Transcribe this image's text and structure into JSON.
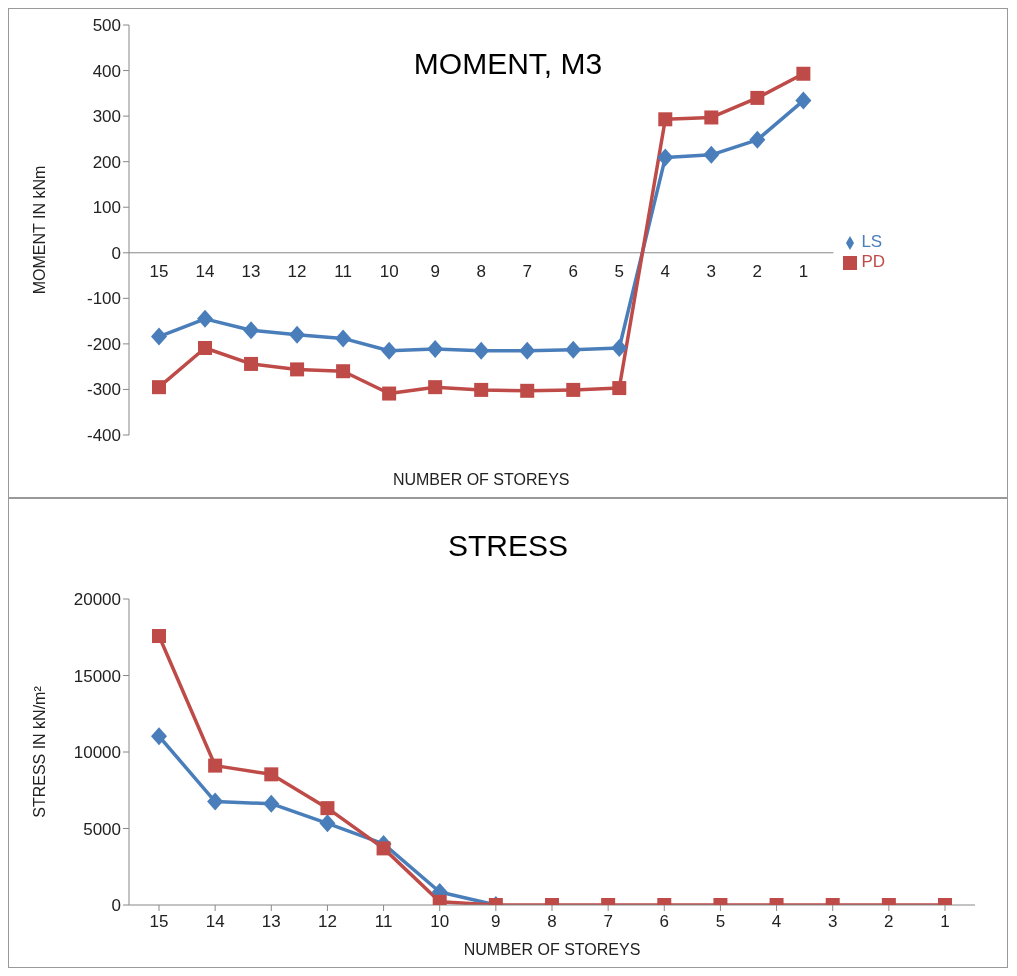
{
  "chart_data": [
    {
      "type": "line",
      "title": "MOMENT, M3",
      "xlabel": "NUMBER OF STOREYS",
      "ylabel": "MOMENT IN kNm",
      "categories": [
        "15",
        "14",
        "13",
        "12",
        "11",
        "10",
        "9",
        "8",
        "7",
        "6",
        "5",
        "4",
        "3",
        "2",
        "1"
      ],
      "series": [
        {
          "name": "LS",
          "color": "#4a7ebb",
          "marker": "diamond",
          "values": [
            -184,
            -145,
            -170,
            -180,
            -188,
            -215,
            -211,
            -215,
            -215,
            -213,
            -209,
            209,
            215,
            248,
            334
          ]
        },
        {
          "name": "PD",
          "color": "#be4b48",
          "marker": "square",
          "values": [
            -295,
            -209,
            -244,
            -256,
            -260,
            -309,
            -295,
            -301,
            -303,
            -301,
            -297,
            293,
            297,
            340,
            393
          ]
        }
      ],
      "ylim": [
        -400,
        500
      ],
      "yticks": [
        -400,
        -300,
        -200,
        -100,
        0,
        100,
        200,
        300,
        400,
        500
      ],
      "grid": false,
      "legend": "right"
    },
    {
      "type": "line",
      "title": "STRESS",
      "xlabel": "NUMBER OF STOREYS",
      "ylabel": "STRESS IN kN/m²",
      "categories": [
        "15",
        "14",
        "13",
        "12",
        "11",
        "10",
        "9",
        "8",
        "7",
        "6",
        "5",
        "4",
        "3",
        "2",
        "1"
      ],
      "series": [
        {
          "color": "#4a7ebb",
          "marker": "diamond",
          "values": [
            11030,
            6760,
            6620,
            5340,
            3990,
            850,
            0,
            null,
            null,
            null,
            null,
            null,
            null,
            null,
            null
          ]
        },
        {
          "color": "#be4b48",
          "marker": "square",
          "values": [
            17580,
            9110,
            8540,
            6330,
            3700,
            210,
            0,
            0,
            0,
            0,
            0,
            0,
            0,
            0,
            0
          ]
        }
      ],
      "ylim": [
        0,
        20000
      ],
      "yticks": [
        0,
        5000,
        10000,
        15000,
        20000
      ],
      "grid": false
    }
  ]
}
